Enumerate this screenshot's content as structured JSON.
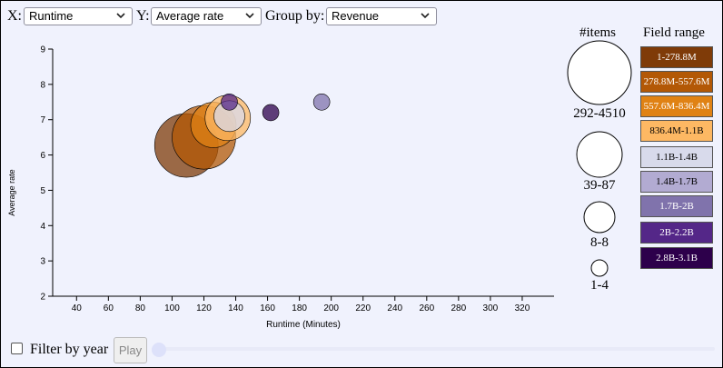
{
  "controls": {
    "x_label": "X:",
    "x_value": "Runtime",
    "y_label": "Y:",
    "y_value": "Average rate",
    "group_label": "Group by:",
    "group_value": "Revenue",
    "filter_label": "Filter by year",
    "filter_checked": false,
    "play_label": "Play"
  },
  "size_legend": {
    "title": "#items",
    "entries": [
      "292-4510",
      "39-87",
      "8-8",
      "1-4"
    ]
  },
  "color_legend": {
    "title": "Field range",
    "entries": [
      {
        "label": "1-278.8M",
        "color": "#7f3b08"
      },
      {
        "label": "278.8M-557.6M",
        "color": "#b35806"
      },
      {
        "label": "557.6M-836.4M",
        "color": "#e08214"
      },
      {
        "label": "836.4M-1.1B",
        "color": "#fdb863"
      },
      {
        "label": "1.1B-1.4B",
        "color": "#d8daeb"
      },
      {
        "label": "1.4B-1.7B",
        "color": "#b2abd2"
      },
      {
        "label": "1.7B-2B",
        "color": "#8073ac"
      },
      {
        "label": "2B-2.2B",
        "color": "#542788"
      },
      {
        "label": "2.8B-3.1B",
        "color": "#2d004b"
      }
    ]
  },
  "chart_data": {
    "type": "scatter",
    "xlabel": "Runtime (Minutes)",
    "ylabel": "Average rate",
    "xlim": [
      25,
      340
    ],
    "ylim": [
      2,
      9
    ],
    "xticks": [
      40,
      60,
      80,
      100,
      120,
      140,
      160,
      180,
      200,
      220,
      240,
      260,
      280,
      300,
      320
    ],
    "yticks": [
      2,
      3,
      4,
      5,
      6,
      7,
      8,
      9
    ],
    "points": [
      {
        "x": 109,
        "y": 6.27,
        "group": "1-278.8M",
        "items": "292-4510",
        "color": "#7f3b08"
      },
      {
        "x": 120,
        "y": 6.5,
        "group": "278.8M-557.6M",
        "items": "292-4510",
        "color": "#b35806"
      },
      {
        "x": 126,
        "y": 6.85,
        "group": "557.6M-836.4M",
        "items": "39-87",
        "color": "#e08214"
      },
      {
        "x": 135,
        "y": 7.05,
        "group": "836.4M-1.1B",
        "items": "39-87",
        "color": "#fdb863"
      },
      {
        "x": 136,
        "y": 7.1,
        "group": "1.1B-1.4B",
        "items": "8-8",
        "color": "#d8daeb"
      },
      {
        "x": 136,
        "y": 7.5,
        "group": "2B-2.2B",
        "items": "1-4",
        "color": "#542788"
      },
      {
        "x": 162,
        "y": 7.2,
        "group": "2.8B-3.1B",
        "items": "1-4",
        "color": "#2d004b"
      },
      {
        "x": 194,
        "y": 7.5,
        "group": "1.7B-2B",
        "items": "1-4",
        "color": "#8073ac"
      }
    ]
  }
}
